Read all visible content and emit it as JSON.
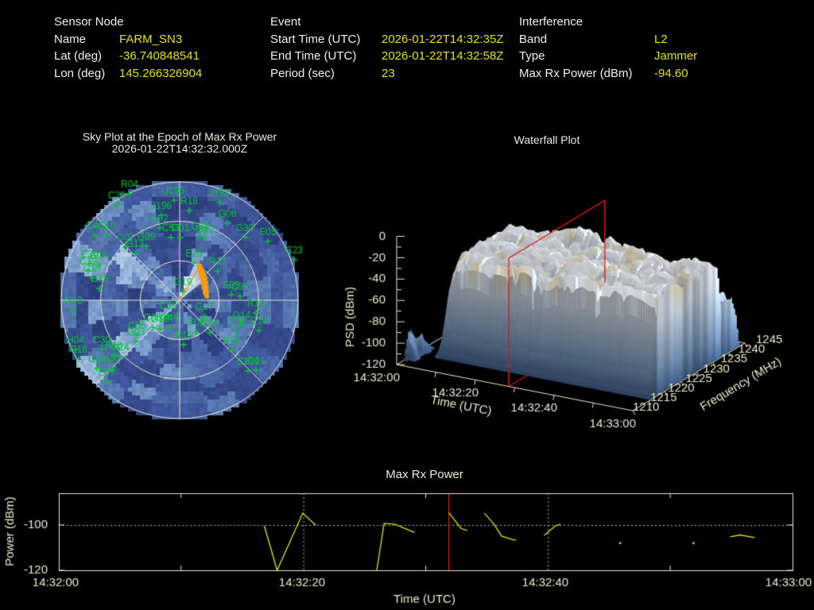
{
  "header": {
    "sensor": {
      "title": "Sensor Node",
      "rows": [
        {
          "label": "Name",
          "value": "FARM_SN3"
        },
        {
          "label": "Lat (deg)",
          "value": "-36.740848541"
        },
        {
          "label": "Lon (deg)",
          "value": "145.266326904"
        }
      ]
    },
    "event": {
      "title": "Event",
      "rows": [
        {
          "label": "Start Time (UTC)",
          "value": "2026-01-22T14:32:35Z"
        },
        {
          "label": "End Time (UTC)",
          "value": "2026-01-22T14:32:58Z"
        },
        {
          "label": "Period (sec)",
          "value": "23"
        }
      ]
    },
    "interference": {
      "title": "Interference",
      "rows": [
        {
          "label": "Band",
          "value": "L2"
        },
        {
          "label": "Type",
          "value": "Jammer"
        },
        {
          "label": "Max Rx Power (dBm)",
          "value": "-94.60"
        }
      ]
    }
  },
  "colors": {
    "value_text": "#e3e300",
    "label_text": "#f0f0f0",
    "axis_cream": "#ece8cc",
    "sat_green": "#00c832",
    "marker_red": "#dd1111",
    "beam_orange": "#f29a16",
    "line_yellow": "#e6e600"
  },
  "chart_data": [
    {
      "id": "sky_plot",
      "type": "heatmap",
      "title": "Sky Plot at the Epoch of Max Rx Power",
      "subtitle": "2026-01-22T14:32:32.000Z",
      "rings": 3,
      "spokes": 8,
      "palette": [
        "#2e3f7f",
        "#35498a",
        "#3f579c",
        "#4a66a6",
        "#5778b2",
        "#6a8cc0",
        "#7f9fce",
        "#95b4da",
        "#adc8e4"
      ],
      "satellites": [
        {
          "id": "R04",
          "x": 163,
          "y": 233
        },
        {
          "id": "C20",
          "x": 147,
          "y": 247
        },
        {
          "id": "J195",
          "x": 219,
          "y": 241
        },
        {
          "id": "R18",
          "x": 238,
          "y": 254
        },
        {
          "id": "J193",
          "x": 276,
          "y": 244
        },
        {
          "id": "G06",
          "x": 286,
          "y": 270
        },
        {
          "id": "J196",
          "x": 203,
          "y": 260
        },
        {
          "id": "E02",
          "x": 201,
          "y": 276
        },
        {
          "id": "C40",
          "x": 119,
          "y": 285
        },
        {
          "id": "G10",
          "x": 134,
          "y": 285
        },
        {
          "id": "C07",
          "x": 158,
          "y": 300
        },
        {
          "id": "G99",
          "x": 184,
          "y": 299
        },
        {
          "id": "G13",
          "x": 170,
          "y": 308
        },
        {
          "id": "C53",
          "x": 215,
          "y": 288
        },
        {
          "id": "G01",
          "x": 227,
          "y": 288
        },
        {
          "id": "G84",
          "x": 252,
          "y": 286
        },
        {
          "id": "G62",
          "x": 258,
          "y": 290
        },
        {
          "id": "G30",
          "x": 308,
          "y": 288
        },
        {
          "id": "E05",
          "x": 337,
          "y": 293
        },
        {
          "id": "C23",
          "x": 370,
          "y": 316
        },
        {
          "id": "E30",
          "x": 113,
          "y": 321
        },
        {
          "id": "G05",
          "x": 124,
          "y": 323
        },
        {
          "id": "C19",
          "x": 111,
          "y": 330
        },
        {
          "id": "C10",
          "x": 116,
          "y": 339
        },
        {
          "id": "G15",
          "x": 125,
          "y": 352
        },
        {
          "id": "G12",
          "x": 92,
          "y": 379
        },
        {
          "id": "E25",
          "x": 244,
          "y": 320
        },
        {
          "id": "R17",
          "x": 274,
          "y": 330
        },
        {
          "id": "G19",
          "x": 230,
          "y": 356
        },
        {
          "id": "C39",
          "x": 212,
          "y": 386
        },
        {
          "id": "G17",
          "x": 257,
          "y": 387
        },
        {
          "id": "E09",
          "x": 291,
          "y": 360
        },
        {
          "id": "C37",
          "x": 302,
          "y": 362
        },
        {
          "id": "R14",
          "x": 322,
          "y": 383
        },
        {
          "id": "G14",
          "x": 304,
          "y": 398
        },
        {
          "id": "C28",
          "x": 297,
          "y": 406
        },
        {
          "id": "E14",
          "x": 326,
          "y": 405
        },
        {
          "id": "E06",
          "x": 247,
          "y": 407
        },
        {
          "id": "G22",
          "x": 264,
          "y": 408
        },
        {
          "id": "C06",
          "x": 192,
          "y": 401
        },
        {
          "id": "G16",
          "x": 201,
          "y": 403
        },
        {
          "id": "G46",
          "x": 213,
          "y": 401
        },
        {
          "id": "C56",
          "x": 172,
          "y": 411
        },
        {
          "id": "G03",
          "x": 171,
          "y": 419
        },
        {
          "id": "R15",
          "x": 231,
          "y": 423
        },
        {
          "id": "R24",
          "x": 292,
          "y": 430
        },
        {
          "id": "C101",
          "x": 312,
          "y": 456
        },
        {
          "id": "G01",
          "x": 322,
          "y": 455
        },
        {
          "id": "H04",
          "x": 95,
          "y": 429
        },
        {
          "id": "C18",
          "x": 99,
          "y": 441
        },
        {
          "id": "C30",
          "x": 128,
          "y": 429
        },
        {
          "id": "R16",
          "x": 143,
          "y": 436
        },
        {
          "id": "G24",
          "x": 151,
          "y": 438
        },
        {
          "id": "C22",
          "x": 122,
          "y": 453
        },
        {
          "id": "R27",
          "x": 141,
          "y": 455
        },
        {
          "id": "E07",
          "x": 134,
          "y": 470
        }
      ],
      "beam": {
        "line_to": [
          251,
          336
        ],
        "dots": [
          [
            260,
            373,
            3
          ],
          [
            259,
            368,
            4
          ],
          [
            258,
            362,
            4.5
          ],
          [
            257,
            356,
            5
          ],
          [
            256,
            350,
            5
          ],
          [
            254,
            344,
            4.5
          ],
          [
            252,
            339,
            4
          ],
          [
            251,
            335,
            3.5
          ]
        ]
      }
    },
    {
      "id": "waterfall",
      "type": "surface",
      "title": "Waterfall Plot",
      "xlabel": "Time (UTC)",
      "ylabel": "Frequency (MHz)",
      "zlabel": "PSD (dBm)",
      "time_ticks": [
        "14:32:00",
        "14:32:20",
        "14:32:40",
        "14:33:00"
      ],
      "time_tick_sec": [
        0,
        20,
        40,
        60
      ],
      "freq_ticks": [
        1210,
        1215,
        1220,
        1225,
        1230,
        1235,
        1240,
        1245
      ],
      "psd_ticks": [
        0,
        -20,
        -40,
        -60,
        -80,
        -100,
        -120
      ],
      "time_range_sec": [
        0,
        60
      ],
      "freq_range": [
        1210,
        1245
      ],
      "psd_range": [
        -120,
        0
      ],
      "slice_time_sec": 28.5,
      "slice_freq_range": [
        1210,
        1240
      ]
    },
    {
      "id": "max_rx_power",
      "type": "line",
      "title": "Max Rx Power",
      "xlabel": "Time (UTC)",
      "ylabel": "Power (dBm)",
      "x_ticks": [
        "14:32:00",
        "14:32:20",
        "14:32:40",
        "14:33:00"
      ],
      "x_tick_sec": [
        0,
        20,
        40,
        60
      ],
      "x_minor_tick_sec": [
        10,
        30,
        50
      ],
      "y_ticks": [
        -100,
        -120
      ],
      "ylim": [
        -120,
        -86
      ],
      "xlim_sec": [
        0,
        60
      ],
      "marker_time_sec": 31.9,
      "grid_y": [
        -100
      ],
      "grid_x_sec": [
        20,
        40
      ],
      "points": [
        [
          16.8,
          -100.3
        ],
        [
          17.85,
          -120
        ],
        [
          19.95,
          -94.8
        ],
        [
          21.0,
          -100.1
        ],
        null,
        [
          26.0,
          -120
        ],
        [
          26.6,
          -99.3
        ],
        [
          27.5,
          -99.7
        ],
        [
          28.5,
          -102.0
        ],
        [
          29.1,
          -103.3
        ],
        null,
        [
          31.9,
          -94.6
        ],
        [
          32.9,
          -101.6
        ],
        [
          33.4,
          -102.4
        ],
        null,
        [
          34.8,
          -94.8
        ],
        [
          35.6,
          -99.7
        ],
        [
          36.2,
          -104.9
        ],
        [
          37.0,
          -106.3
        ],
        [
          37.4,
          -106.7
        ],
        null,
        [
          39.7,
          -104.6
        ],
        [
          40.6,
          -100.4
        ],
        [
          41.0,
          -99.7
        ],
        null,
        [
          45.9,
          -108.0
        ],
        null,
        [
          51.9,
          -108.0
        ],
        null,
        [
          54.9,
          -105.2
        ],
        [
          55.7,
          -104.4
        ],
        [
          56.9,
          -105.6
        ]
      ]
    }
  ]
}
